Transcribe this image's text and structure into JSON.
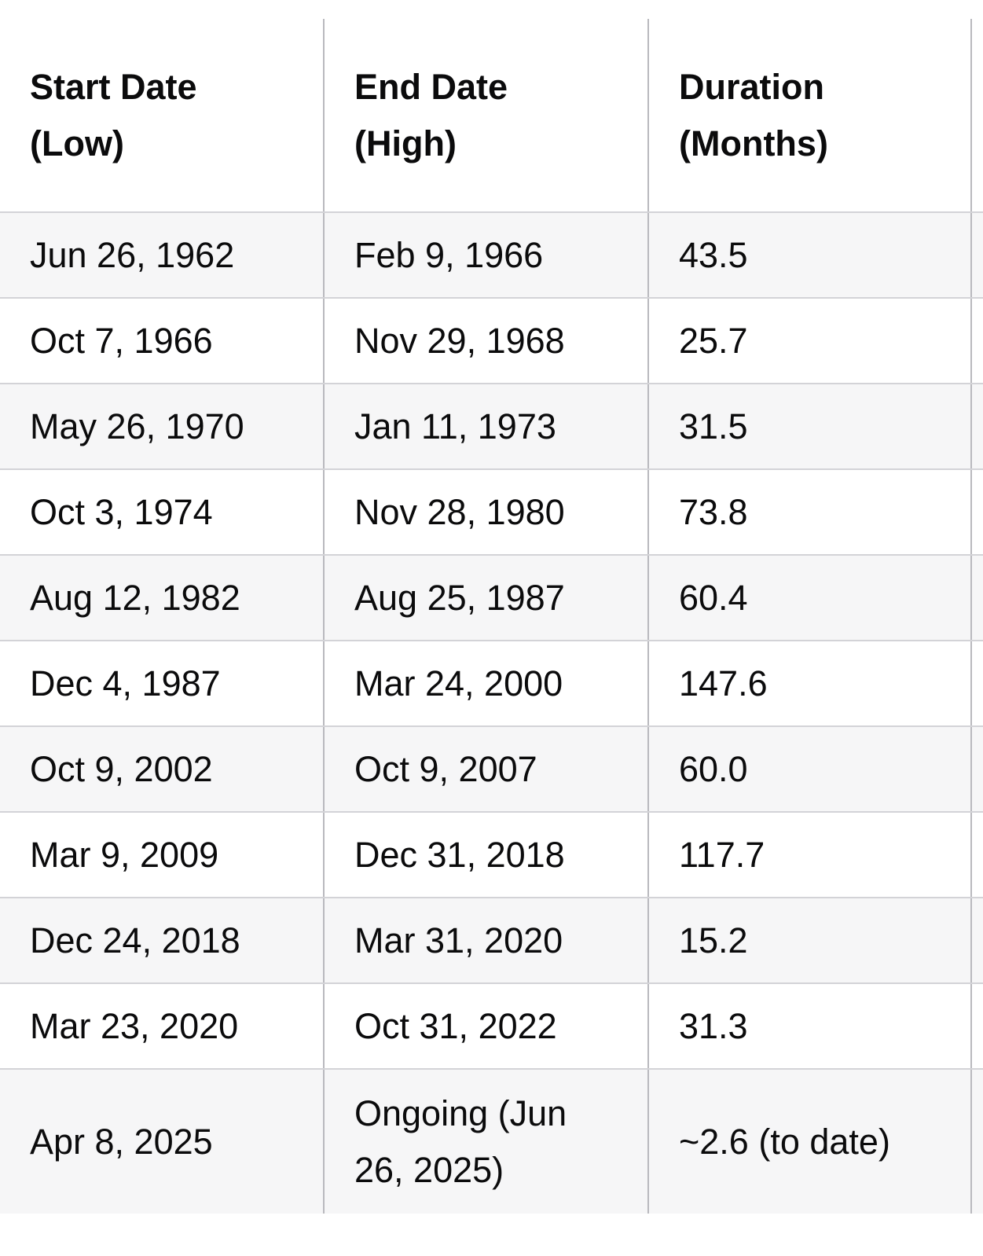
{
  "table": {
    "columns": [
      {
        "title": "Start Date",
        "subtitle": "(Low)"
      },
      {
        "title": "End Date",
        "subtitle": "(High)"
      },
      {
        "title": "Duration",
        "subtitle": "(Months)"
      }
    ],
    "rows": [
      {
        "start": "Jun 26, 1962",
        "end": "Feb 9, 1966",
        "duration": "43.5"
      },
      {
        "start": "Oct 7, 1966",
        "end": "Nov 29, 1968",
        "duration": "25.7"
      },
      {
        "start": "May 26, 1970",
        "end": "Jan 11, 1973",
        "duration": "31.5"
      },
      {
        "start": "Oct 3, 1974",
        "end": "Nov 28, 1980",
        "duration": "73.8"
      },
      {
        "start": "Aug 12, 1982",
        "end": "Aug 25, 1987",
        "duration": "60.4"
      },
      {
        "start": "Dec 4, 1987",
        "end": "Mar 24, 2000",
        "duration": "147.6"
      },
      {
        "start": "Oct 9, 2002",
        "end": "Oct 9, 2007",
        "duration": "60.0"
      },
      {
        "start": "Mar 9, 2009",
        "end": "Dec 31, 2018",
        "duration": "117.7"
      },
      {
        "start": "Dec 24, 2018",
        "end": "Mar 31, 2020",
        "duration": "15.2"
      },
      {
        "start": "Mar 23, 2020",
        "end": "Oct 31, 2022",
        "duration": "31.3"
      },
      {
        "start": "Apr 8, 2025",
        "end": "Ongoing (Jun 26, 2025)",
        "duration": "~2.6 (to date)"
      }
    ]
  },
  "colors": {
    "background": "#ffffff",
    "row_stripe": "#f6f6f7",
    "border_vertical": "#b9b9be",
    "border_horizontal": "#d3d3d7",
    "text": "#0b0b0c"
  }
}
